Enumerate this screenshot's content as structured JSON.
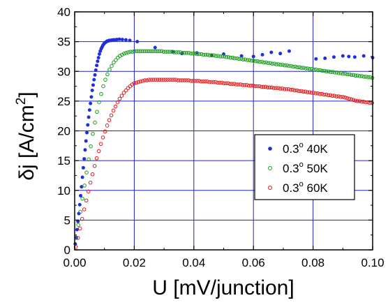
{
  "chart_data": {
    "type": "scatter",
    "xlabel": "U [mV/junction]",
    "ylabel": {
      "main": "δj [A/cm",
      "sup": "2",
      "tail": "]"
    },
    "xlim": [
      0,
      0.1
    ],
    "ylim": [
      0,
      40
    ],
    "x_ticks": [
      0.0,
      0.02,
      0.04,
      0.06,
      0.08,
      0.1
    ],
    "x_tick_labels": [
      "0.00",
      "0.02",
      "0.04",
      "0.06",
      "0.08",
      "0.10"
    ],
    "y_ticks": [
      0,
      5,
      10,
      15,
      20,
      25,
      30,
      35,
      40
    ],
    "y_tick_labels": [
      "0",
      "5",
      "10",
      "15",
      "20",
      "25",
      "30",
      "35",
      "40"
    ],
    "grid": true,
    "legend_position": "center-right",
    "series": [
      {
        "name": "0.3° 40K",
        "legend": {
          "pre": "0.3",
          "sup": "o",
          "post": " 40K"
        },
        "marker": "filled-circle",
        "color": "#1f2fe0",
        "x": [
          0.0002,
          0.0005,
          0.0008,
          0.0011,
          0.0014,
          0.0017,
          0.002,
          0.0023,
          0.0026,
          0.0029,
          0.0032,
          0.0035,
          0.0038,
          0.0041,
          0.0044,
          0.0047,
          0.005,
          0.0053,
          0.0056,
          0.0059,
          0.0062,
          0.0065,
          0.0068,
          0.0071,
          0.0074,
          0.0077,
          0.008,
          0.0083,
          0.0086,
          0.0089,
          0.0092,
          0.0095,
          0.0098,
          0.0101,
          0.0104,
          0.0107,
          0.011,
          0.0113,
          0.0116,
          0.0119,
          0.0122,
          0.0125,
          0.013,
          0.0135,
          0.0142,
          0.015,
          0.016,
          0.0172,
          0.0185,
          0.021,
          0.027,
          0.033,
          0.036,
          0.041,
          0.046,
          0.05,
          0.056,
          0.06,
          0.063,
          0.066,
          0.069,
          0.072,
          0.081,
          0.084,
          0.087,
          0.09,
          0.092,
          0.094,
          0.097,
          0.1
        ],
        "y": [
          1.0,
          2.1,
          3.4,
          4.8,
          6.1,
          7.6,
          9.1,
          10.6,
          12.2,
          13.8,
          15.3,
          16.8,
          18.3,
          19.7,
          21.0,
          22.3,
          23.5,
          24.6,
          25.7,
          26.8,
          27.7,
          28.6,
          29.4,
          30.2,
          31.0,
          31.7,
          32.3,
          32.9,
          33.4,
          33.8,
          34.1,
          34.4,
          34.6,
          34.8,
          34.9,
          35.0,
          35.1,
          35.1,
          35.2,
          35.2,
          35.2,
          35.25,
          35.3,
          35.3,
          35.35,
          35.4,
          35.35,
          35.3,
          35.2,
          35.0,
          34.0,
          33.3,
          33.0,
          33.1,
          32.7,
          32.9,
          32.6,
          32.5,
          32.8,
          33.2,
          33.0,
          33.4,
          32.1,
          32.2,
          32.4,
          32.6,
          32.5,
          32.4,
          32.6,
          32.3
        ]
      },
      {
        "name": "0.3° 50K",
        "legend": {
          "pre": "0.3",
          "sup": "o",
          "post": " 50K"
        },
        "marker": "open-circle",
        "color": "#1a9a1a",
        "x": [
          0.0005,
          0.0012,
          0.0019,
          0.0026,
          0.0033,
          0.004,
          0.0047,
          0.0054,
          0.0061,
          0.0068,
          0.0075,
          0.0082,
          0.0089,
          0.0096,
          0.0103,
          0.011,
          0.0117,
          0.0124,
          0.0131,
          0.0138,
          0.0145,
          0.0152,
          0.0159,
          0.0166,
          0.0173,
          0.018,
          0.0187,
          0.0194,
          0.0201,
          0.0208,
          0.0215,
          0.0222,
          0.0229,
          0.0236,
          0.0243,
          0.025,
          0.0257,
          0.0264,
          0.0271,
          0.0278,
          0.0285,
          0.0292,
          0.0299,
          0.0306,
          0.0313,
          0.032,
          0.0327,
          0.0334,
          0.0341,
          0.0348,
          0.0355,
          0.0362,
          0.0369,
          0.0376,
          0.0383,
          0.039,
          0.0397,
          0.0404,
          0.0411,
          0.0418,
          0.0425,
          0.0432,
          0.0439,
          0.0446,
          0.0453,
          0.046,
          0.0467,
          0.0474,
          0.0481,
          0.0488,
          0.0495,
          0.0502,
          0.0509,
          0.0516,
          0.0523,
          0.053,
          0.0537,
          0.0544,
          0.0551,
          0.0558,
          0.0565,
          0.0572,
          0.0579,
          0.0586,
          0.0593,
          0.06,
          0.0607,
          0.0614,
          0.0621,
          0.0628,
          0.0635,
          0.0642,
          0.0649,
          0.0656,
          0.0663,
          0.067,
          0.0677,
          0.0684,
          0.0691,
          0.0698,
          0.0705,
          0.0712,
          0.0719,
          0.0726,
          0.0733,
          0.074,
          0.0747,
          0.0754,
          0.0761,
          0.0768,
          0.0775,
          0.0782,
          0.0789,
          0.0796,
          0.0803,
          0.081,
          0.0817,
          0.0824,
          0.0831,
          0.0838,
          0.0845,
          0.0852,
          0.0859,
          0.0866,
          0.0873,
          0.088,
          0.0887,
          0.0894,
          0.0901,
          0.0908,
          0.0915,
          0.0922,
          0.0929,
          0.0936,
          0.0943,
          0.095,
          0.0957,
          0.0964,
          0.0971,
          0.0978,
          0.0985,
          0.0992,
          0.0999
        ],
        "y": [
          2.0,
          4.2,
          6.4,
          8.6,
          10.8,
          13.0,
          15.2,
          17.4,
          19.5,
          21.4,
          23.2,
          24.8,
          26.2,
          27.5,
          28.6,
          29.5,
          30.3,
          30.9,
          31.5,
          31.9,
          32.3,
          32.6,
          32.8,
          33.0,
          33.1,
          33.2,
          33.3,
          33.3,
          33.4,
          33.4,
          33.4,
          33.4,
          33.4,
          33.4,
          33.4,
          33.4,
          33.4,
          33.4,
          33.4,
          33.4,
          33.4,
          33.4,
          33.3,
          33.3,
          33.3,
          33.3,
          33.3,
          33.2,
          33.2,
          33.2,
          33.2,
          33.1,
          33.1,
          33.1,
          33.1,
          33.0,
          33.0,
          33.0,
          32.9,
          32.9,
          32.9,
          32.8,
          32.8,
          32.8,
          32.7,
          32.7,
          32.7,
          32.6,
          32.6,
          32.5,
          32.5,
          32.5,
          32.4,
          32.4,
          32.3,
          32.3,
          32.2,
          32.2,
          32.1,
          32.1,
          32.0,
          32.0,
          31.9,
          31.9,
          31.8,
          31.8,
          31.7,
          31.7,
          31.6,
          31.6,
          31.5,
          31.5,
          31.4,
          31.4,
          31.3,
          31.3,
          31.2,
          31.2,
          31.1,
          31.1,
          31.0,
          31.0,
          30.9,
          30.9,
          30.8,
          30.8,
          30.7,
          30.7,
          30.6,
          30.6,
          30.5,
          30.5,
          30.4,
          30.4,
          30.3,
          30.3,
          30.2,
          30.2,
          30.1,
          30.1,
          30.0,
          30.0,
          29.9,
          29.9,
          29.8,
          29.8,
          29.7,
          29.7,
          29.6,
          29.6,
          29.5,
          29.5,
          29.4,
          29.4,
          29.3,
          29.3,
          29.2,
          29.2,
          29.1,
          29.1,
          29.0,
          29.0,
          28.9
        ]
      },
      {
        "name": "0.3° 60K",
        "legend": {
          "pre": "0.3",
          "sup": "o",
          "post": " 60K"
        },
        "marker": "open-circle",
        "color": "#e01a1a",
        "x": [
          0.0004,
          0.0011,
          0.0018,
          0.0025,
          0.0032,
          0.0039,
          0.0046,
          0.0053,
          0.006,
          0.0067,
          0.0074,
          0.0081,
          0.0088,
          0.0095,
          0.0102,
          0.0109,
          0.0116,
          0.0123,
          0.013,
          0.0137,
          0.0144,
          0.0151,
          0.0158,
          0.0165,
          0.0172,
          0.0179,
          0.0186,
          0.0193,
          0.02,
          0.0207,
          0.0214,
          0.0221,
          0.0228,
          0.0235,
          0.0242,
          0.0249,
          0.0256,
          0.0263,
          0.027,
          0.0277,
          0.0284,
          0.0291,
          0.0298,
          0.0305,
          0.0312,
          0.0319,
          0.0326,
          0.0333,
          0.034,
          0.0347,
          0.0354,
          0.0361,
          0.0368,
          0.0375,
          0.0382,
          0.0389,
          0.0396,
          0.0403,
          0.041,
          0.0417,
          0.0424,
          0.0431,
          0.0438,
          0.0445,
          0.0452,
          0.0459,
          0.0466,
          0.0473,
          0.048,
          0.0487,
          0.0494,
          0.0501,
          0.0508,
          0.0515,
          0.0522,
          0.0529,
          0.0536,
          0.0543,
          0.055,
          0.0557,
          0.0564,
          0.0571,
          0.0578,
          0.0585,
          0.0592,
          0.0599,
          0.0606,
          0.0613,
          0.062,
          0.0627,
          0.0634,
          0.0641,
          0.0648,
          0.0655,
          0.0662,
          0.0669,
          0.0676,
          0.0683,
          0.069,
          0.0697,
          0.0704,
          0.0711,
          0.0718,
          0.0725,
          0.0732,
          0.0739,
          0.0746,
          0.0753,
          0.076,
          0.0767,
          0.0774,
          0.0781,
          0.0788,
          0.0795,
          0.0802,
          0.0809,
          0.0816,
          0.0823,
          0.083,
          0.0837,
          0.0844,
          0.0851,
          0.0858,
          0.0865,
          0.0872,
          0.0879,
          0.0886,
          0.0893,
          0.09,
          0.0907,
          0.0914,
          0.0921,
          0.0928,
          0.0935,
          0.0942,
          0.0949,
          0.0956,
          0.0963,
          0.097,
          0.0977,
          0.0984,
          0.0991,
          0.0998
        ],
        "y": [
          0.5,
          2.0,
          3.6,
          5.2,
          6.8,
          8.3,
          9.8,
          11.3,
          12.7,
          14.1,
          15.4,
          16.6,
          17.8,
          18.9,
          19.9,
          20.9,
          21.8,
          22.6,
          23.4,
          24.1,
          24.8,
          25.4,
          25.9,
          26.4,
          26.8,
          27.2,
          27.5,
          27.8,
          28.0,
          28.1,
          28.2,
          28.3,
          28.4,
          28.5,
          28.5,
          28.6,
          28.6,
          28.6,
          28.6,
          28.6,
          28.6,
          28.6,
          28.6,
          28.6,
          28.6,
          28.6,
          28.6,
          28.6,
          28.6,
          28.5,
          28.5,
          28.5,
          28.5,
          28.5,
          28.5,
          28.4,
          28.4,
          28.4,
          28.4,
          28.4,
          28.3,
          28.3,
          28.3,
          28.3,
          28.2,
          28.2,
          28.2,
          28.2,
          28.1,
          28.1,
          28.1,
          28.0,
          28.0,
          28.0,
          27.9,
          27.9,
          27.9,
          27.8,
          27.8,
          27.8,
          27.7,
          27.7,
          27.7,
          27.6,
          27.6,
          27.6,
          27.5,
          27.5,
          27.5,
          27.4,
          27.4,
          27.4,
          27.3,
          27.3,
          27.3,
          27.2,
          27.2,
          27.2,
          27.1,
          27.1,
          27.0,
          27.0,
          27.0,
          26.9,
          26.9,
          26.8,
          26.8,
          26.7,
          26.7,
          26.6,
          26.6,
          26.5,
          26.5,
          26.4,
          26.4,
          26.3,
          26.3,
          26.2,
          26.2,
          26.1,
          26.1,
          26.0,
          26.0,
          25.9,
          25.9,
          25.8,
          25.8,
          25.7,
          25.7,
          25.6,
          25.5,
          25.4,
          25.3,
          25.2,
          25.1,
          25.0,
          25.0,
          24.9,
          24.9,
          24.8,
          24.8,
          24.7,
          24.7
        ]
      }
    ]
  },
  "colors": {
    "grid": "#2020c8",
    "axis": "#000000",
    "background": "#ffffff"
  }
}
